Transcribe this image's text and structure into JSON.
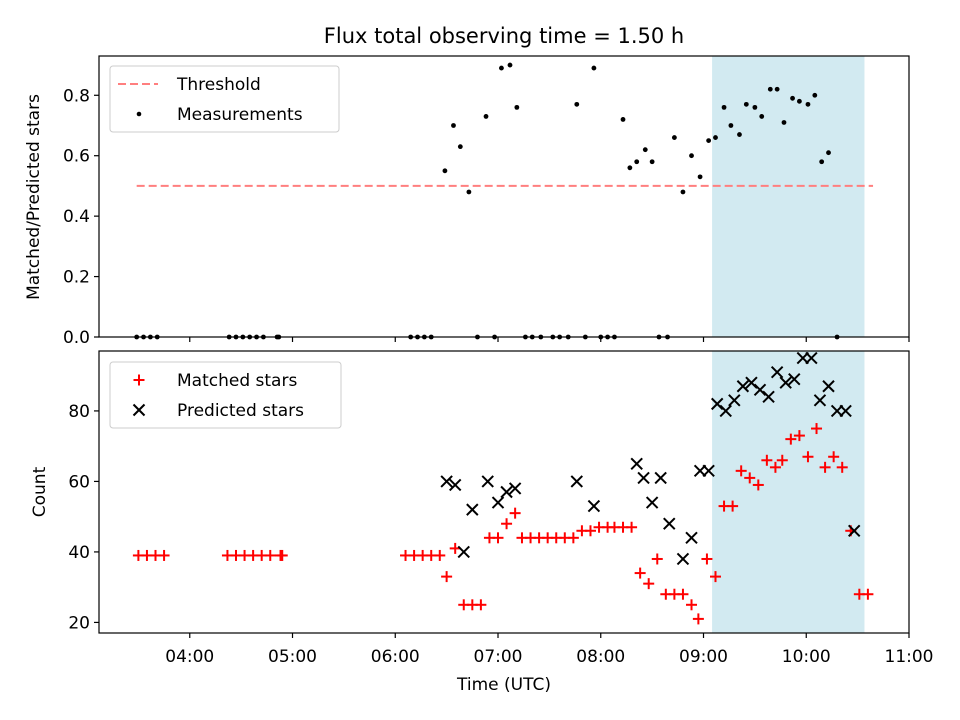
{
  "chart_data": [
    {
      "type": "scatter",
      "title": "Flux total observing time = 1.50 h",
      "ylabel": "Matched/Predicted stars",
      "xlim": [
        "03:07",
        "11:00"
      ],
      "ylim": [
        0,
        0.93
      ],
      "yticks": [
        "0.0",
        "0.2",
        "0.4",
        "0.6",
        "0.8"
      ],
      "highlight_span": {
        "x_start": "09:05",
        "x_end": "10:34",
        "color": "#add8e6"
      },
      "legend": {
        "position": "top-left",
        "threshold_label": "Threshold",
        "measurements_label": "Measurements"
      },
      "threshold": {
        "value": 0.5,
        "x_start": "03:29",
        "x_end": "10:39",
        "color": "#ff7f7f"
      },
      "series": [
        {
          "name": "Measurements",
          "color": "#000000",
          "points": [
            [
              "03:29",
              0
            ],
            [
              "03:33",
              0
            ],
            [
              "03:37",
              0
            ],
            [
              "03:41",
              0
            ],
            [
              "04:23",
              0
            ],
            [
              "04:27",
              0
            ],
            [
              "04:31",
              0
            ],
            [
              "04:35",
              0
            ],
            [
              "04:39",
              0
            ],
            [
              "04:43",
              0
            ],
            [
              "04:51",
              0
            ],
            [
              "04:52",
              0
            ],
            [
              "06:09",
              0
            ],
            [
              "06:13",
              0
            ],
            [
              "06:17",
              0
            ],
            [
              "06:21",
              0
            ],
            [
              "06:29",
              0.55
            ],
            [
              "06:34",
              0.7
            ],
            [
              "06:38",
              0.63
            ],
            [
              "06:43",
              0.48
            ],
            [
              "06:48",
              0
            ],
            [
              "06:53",
              0.73
            ],
            [
              "06:58",
              0
            ],
            [
              "07:02",
              0.89
            ],
            [
              "07:07",
              0.9
            ],
            [
              "07:11",
              0.76
            ],
            [
              "07:16",
              0
            ],
            [
              "07:20",
              0
            ],
            [
              "07:25",
              0
            ],
            [
              "07:32",
              0
            ],
            [
              "07:36",
              0
            ],
            [
              "07:41",
              0
            ],
            [
              "07:46",
              0.77
            ],
            [
              "07:51",
              0
            ],
            [
              "07:56",
              0.89
            ],
            [
              "08:00",
              0
            ],
            [
              "08:04",
              0
            ],
            [
              "08:08",
              0
            ],
            [
              "08:13",
              0.72
            ],
            [
              "08:17",
              0.56
            ],
            [
              "08:21",
              0.58
            ],
            [
              "08:26",
              0.62
            ],
            [
              "08:30",
              0.58
            ],
            [
              "08:34",
              0
            ],
            [
              "08:39",
              0
            ],
            [
              "08:43",
              0.66
            ],
            [
              "08:48",
              0.48
            ],
            [
              "08:53",
              0.6
            ],
            [
              "08:58",
              0.53
            ],
            [
              "09:03",
              0.65
            ],
            [
              "09:07",
              0.66
            ],
            [
              "09:12",
              0.76
            ],
            [
              "09:16",
              0.7
            ],
            [
              "09:21",
              0.67
            ],
            [
              "09:25",
              0.77
            ],
            [
              "09:30",
              0.76
            ],
            [
              "09:34",
              0.73
            ],
            [
              "09:39",
              0.82
            ],
            [
              "09:43",
              0.82
            ],
            [
              "09:47",
              0.71
            ],
            [
              "09:52",
              0.79
            ],
            [
              "09:56",
              0.78
            ],
            [
              "10:01",
              0.77
            ],
            [
              "10:05",
              0.8
            ],
            [
              "10:09",
              0.58
            ],
            [
              "10:13",
              0.61
            ],
            [
              "10:18",
              0
            ]
          ]
        }
      ]
    },
    {
      "type": "scatter",
      "xlabel": "Time (UTC)",
      "ylabel": "Count",
      "xlim": [
        "03:07",
        "11:00"
      ],
      "ylim": [
        17,
        97
      ],
      "xticks": [
        "04:00",
        "05:00",
        "06:00",
        "07:00",
        "08:00",
        "09:00",
        "10:00",
        "11:00"
      ],
      "yticks": [
        "20",
        "40",
        "60",
        "80"
      ],
      "highlight_span": {
        "x_start": "09:05",
        "x_end": "10:34",
        "color": "#add8e6"
      },
      "legend": {
        "position": "top-left"
      },
      "series": [
        {
          "name": "Matched stars",
          "color": "#ff0000",
          "points": [
            [
              "03:30",
              39
            ],
            [
              "03:35",
              39
            ],
            [
              "03:40",
              39
            ],
            [
              "03:45",
              39
            ],
            [
              "04:22",
              39
            ],
            [
              "04:27",
              39
            ],
            [
              "04:32",
              39
            ],
            [
              "04:37",
              39
            ],
            [
              "04:42",
              39
            ],
            [
              "04:47",
              39
            ],
            [
              "04:53",
              39
            ],
            [
              "04:54",
              39
            ],
            [
              "06:06",
              39
            ],
            [
              "06:11",
              39
            ],
            [
              "06:16",
              39
            ],
            [
              "06:21",
              39
            ],
            [
              "06:26",
              39
            ],
            [
              "06:30",
              33
            ],
            [
              "06:35",
              41
            ],
            [
              "06:40",
              25
            ],
            [
              "06:45",
              25
            ],
            [
              "06:50",
              25
            ],
            [
              "06:55",
              44
            ],
            [
              "07:00",
              44
            ],
            [
              "07:05",
              48
            ],
            [
              "07:10",
              51
            ],
            [
              "07:14",
              44
            ],
            [
              "07:19",
              44
            ],
            [
              "07:24",
              44
            ],
            [
              "07:29",
              44
            ],
            [
              "07:34",
              44
            ],
            [
              "07:39",
              44
            ],
            [
              "07:44",
              44
            ],
            [
              "07:49",
              46
            ],
            [
              "07:54",
              46
            ],
            [
              "07:59",
              47
            ],
            [
              "08:04",
              47
            ],
            [
              "08:08",
              47
            ],
            [
              "08:13",
              47
            ],
            [
              "08:18",
              47
            ],
            [
              "08:23",
              34
            ],
            [
              "08:28",
              31
            ],
            [
              "08:33",
              38
            ],
            [
              "08:38",
              28
            ],
            [
              "08:43",
              28
            ],
            [
              "08:48",
              28
            ],
            [
              "08:53",
              25
            ],
            [
              "08:57",
              21
            ],
            [
              "09:02",
              38
            ],
            [
              "09:07",
              33
            ],
            [
              "09:12",
              53
            ],
            [
              "09:17",
              53
            ],
            [
              "09:22",
              63
            ],
            [
              "09:27",
              61
            ],
            [
              "09:32",
              59
            ],
            [
              "09:37",
              66
            ],
            [
              "09:42",
              64
            ],
            [
              "09:46",
              66
            ],
            [
              "09:51",
              72
            ],
            [
              "09:56",
              73
            ],
            [
              "10:01",
              67
            ],
            [
              "10:06",
              75
            ],
            [
              "10:11",
              64
            ],
            [
              "10:16",
              67
            ],
            [
              "10:21",
              64
            ],
            [
              "10:26",
              46
            ],
            [
              "10:31",
              28
            ],
            [
              "10:36",
              28
            ]
          ]
        },
        {
          "name": "Predicted stars",
          "color": "#000000",
          "points": [
            [
              "06:30",
              60
            ],
            [
              "06:35",
              59
            ],
            [
              "06:40",
              40
            ],
            [
              "06:45",
              52
            ],
            [
              "06:54",
              60
            ],
            [
              "07:00",
              54
            ],
            [
              "07:05",
              57
            ],
            [
              "07:10",
              58
            ],
            [
              "07:46",
              60
            ],
            [
              "07:56",
              53
            ],
            [
              "08:21",
              65
            ],
            [
              "08:25",
              61
            ],
            [
              "08:30",
              54
            ],
            [
              "08:35",
              61
            ],
            [
              "08:40",
              48
            ],
            [
              "08:48",
              38
            ],
            [
              "08:53",
              44
            ],
            [
              "08:58",
              63
            ],
            [
              "09:03",
              63
            ],
            [
              "09:08",
              82
            ],
            [
              "09:13",
              80
            ],
            [
              "09:18",
              83
            ],
            [
              "09:23",
              87
            ],
            [
              "09:28",
              88
            ],
            [
              "09:33",
              86
            ],
            [
              "09:38",
              84
            ],
            [
              "09:43",
              91
            ],
            [
              "09:48",
              88
            ],
            [
              "09:53",
              89
            ],
            [
              "09:58",
              95
            ],
            [
              "10:03",
              95
            ],
            [
              "10:08",
              83
            ],
            [
              "10:13",
              87
            ],
            [
              "10:18",
              80
            ],
            [
              "10:23",
              80
            ],
            [
              "10:28",
              46
            ]
          ]
        }
      ]
    }
  ]
}
